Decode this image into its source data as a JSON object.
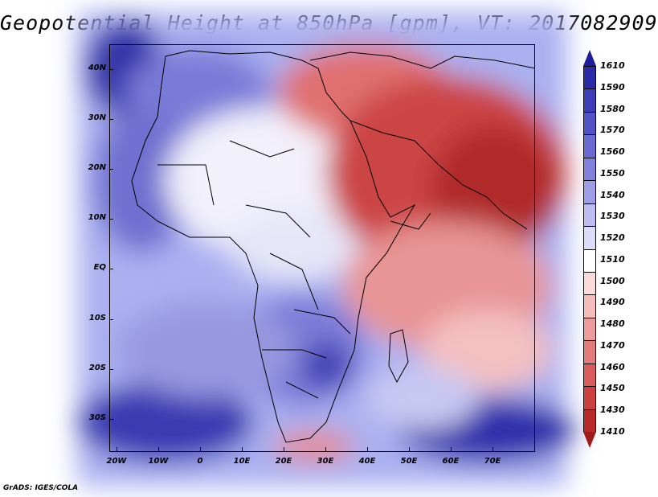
{
  "title": "Geopotential Height at 850hPa [gpm], VT: 2017082909",
  "footer": "GrADS: IGES/COLA",
  "lat_labels": [
    "40N",
    "30N",
    "20N",
    "10N",
    "EQ",
    "10S",
    "20S",
    "30S"
  ],
  "lon_labels": [
    "20W",
    "10W",
    "0",
    "10E",
    "20E",
    "30E",
    "40E",
    "50E",
    "60E",
    "70E"
  ],
  "colorbar": {
    "labels": [
      "1610",
      "1590",
      "1580",
      "1570",
      "1560",
      "1550",
      "1540",
      "1530",
      "1520",
      "1510",
      "1500",
      "1490",
      "1480",
      "1470",
      "1460",
      "1450",
      "1430",
      "1410"
    ],
    "colors": [
      "#1e1e9a",
      "#2b2ba8",
      "#3d3db8",
      "#5252c6",
      "#6a6ad2",
      "#8282dc",
      "#9e9ee6",
      "#bcbcf0",
      "#dcdcf8",
      "#ffffff",
      "#fadada",
      "#f4bcbc",
      "#ec9c9c",
      "#e27c7c",
      "#d85c5c",
      "#cc4040",
      "#b82a2a",
      "#a01a1a"
    ]
  }
}
